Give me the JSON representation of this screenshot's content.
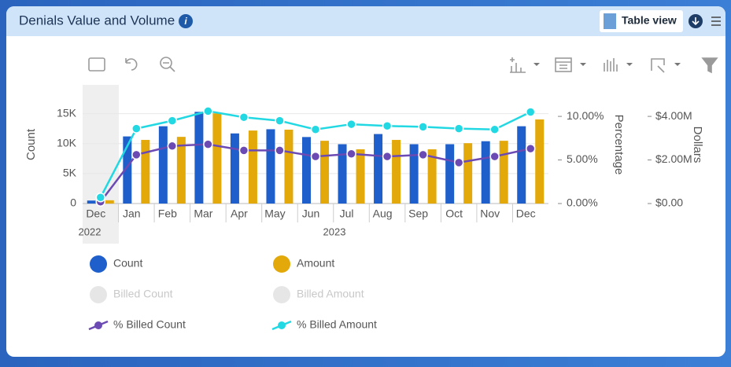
{
  "header": {
    "title": "Denials Value and Volume",
    "table_view": "Table view"
  },
  "chart_data": {
    "type": "bar-line",
    "categories": [
      "Dec",
      "Jan",
      "Feb",
      "Mar",
      "Apr",
      "May",
      "Jun",
      "Jul",
      "Aug",
      "Sep",
      "Oct",
      "Nov",
      "Dec"
    ],
    "year_labels": [
      "2022",
      "2023"
    ],
    "ylabel": "Count",
    "y2label": "Percentage",
    "y3label": "Dollars",
    "ylim": [
      0,
      16000
    ],
    "yticks": [
      0,
      {
        "value": 5000,
        "label": "5K"
      },
      {
        "value": 10000,
        "label": "10K"
      },
      {
        "value": 15000,
        "label": "15K"
      }
    ],
    "y2lim": [
      0,
      11
    ],
    "y2ticks": [
      {
        "value": 0,
        "label": "0.00%"
      },
      {
        "value": 5,
        "label": "5.00%"
      },
      {
        "value": 10,
        "label": "10.00%"
      }
    ],
    "y3lim": [
      0,
      4400000
    ],
    "y3ticks": [
      {
        "value": 0,
        "label": "$0.00"
      },
      {
        "value": 2000000,
        "label": "$2.00M"
      },
      {
        "value": 4000000,
        "label": "$4.00M"
      }
    ],
    "grid": true,
    "series": [
      {
        "name": "Count",
        "kind": "bar",
        "axis": "y",
        "color": "#1f5fcc",
        "values": [
          500,
          11200,
          12900,
          15300,
          11700,
          12400,
          11100,
          9900,
          11600,
          9900,
          9900,
          10400,
          12900
        ]
      },
      {
        "name": "Amount",
        "kind": "bar",
        "axis": "y3",
        "color": "#e3a90a",
        "values": [
          150000,
          2920000,
          3060000,
          4140000,
          3350000,
          3390000,
          2880000,
          2490000,
          2920000,
          2490000,
          2770000,
          2880000,
          3860000
        ]
      },
      {
        "name": "Billed Count",
        "kind": "bar",
        "visible": false,
        "color": "#e6e6e6"
      },
      {
        "name": "Billed Amount",
        "kind": "bar",
        "visible": false,
        "color": "#e6e6e6"
      },
      {
        "name": "% Billed Count",
        "kind": "line",
        "axis": "y2",
        "color": "#6b4bb3",
        "values": [
          0.2,
          5.6,
          6.6,
          6.8,
          6.1,
          6.1,
          5.4,
          5.7,
          5.4,
          5.6,
          4.7,
          5.4,
          6.3
        ]
      },
      {
        "name": "% Billed Amount",
        "kind": "line",
        "axis": "y2",
        "color": "#22d8e2",
        "values": [
          0.7,
          8.6,
          9.5,
          10.6,
          9.9,
          9.5,
          8.5,
          9.1,
          8.9,
          8.8,
          8.6,
          8.5,
          10.5
        ]
      }
    ]
  }
}
